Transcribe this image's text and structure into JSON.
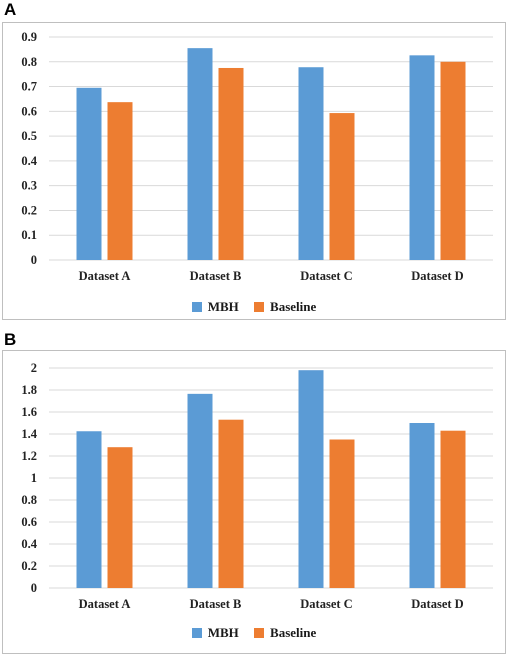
{
  "panels": [
    {
      "label": "A"
    },
    {
      "label": "B"
    }
  ],
  "legend": {
    "mbh": "MBH",
    "baseline": "Baseline"
  },
  "colors": {
    "mbh": "#5b9bd5",
    "baseline": "#ed7d31",
    "grid": "#d9d9d9"
  },
  "chart_data": [
    {
      "type": "bar",
      "categories": [
        "Dataset A",
        "Dataset B",
        "Dataset C",
        "Dataset D"
      ],
      "series": [
        {
          "name": "MBH",
          "values": [
            0.695,
            0.855,
            0.778,
            0.826
          ]
        },
        {
          "name": "Baseline",
          "values": [
            0.637,
            0.775,
            0.593,
            0.8
          ]
        }
      ],
      "ylim": [
        0,
        0.9
      ],
      "yticks": [
        "0",
        "0.1",
        "0.2",
        "0.3",
        "0.4",
        "0.5",
        "0.6",
        "0.7",
        "0.8",
        "0.9"
      ],
      "grid": true,
      "legend": "bottom"
    },
    {
      "type": "bar",
      "categories": [
        "Dataset A",
        "Dataset B",
        "Dataset C",
        "Dataset D"
      ],
      "series": [
        {
          "name": "MBH",
          "values": [
            1.425,
            1.765,
            1.98,
            1.5
          ]
        },
        {
          "name": "Baseline",
          "values": [
            1.28,
            1.53,
            1.35,
            1.43
          ]
        }
      ],
      "ylim": [
        0,
        2
      ],
      "yticks": [
        "0",
        "0.2",
        "0.4",
        "0.6",
        "0.8",
        "1",
        "1.2",
        "1.4",
        "1.6",
        "1.8",
        "2"
      ],
      "grid": true,
      "legend": "bottom"
    }
  ]
}
